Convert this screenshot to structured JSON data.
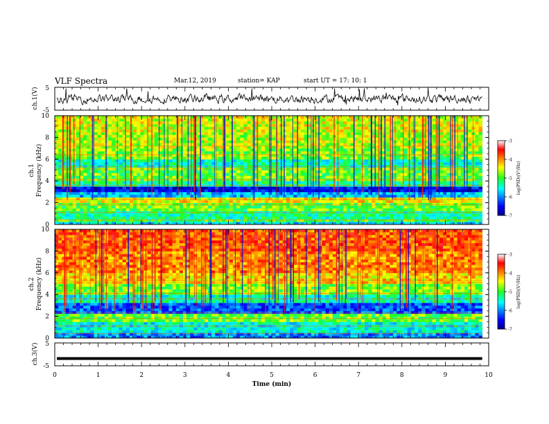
{
  "header": {
    "title": "VLF Spectra",
    "date": "Mar.12, 2019",
    "station": "station= KAP",
    "start": "start  UT =   17: 10: 1"
  },
  "chart_data": [
    {
      "type": "line",
      "panel": "ch1-waveform",
      "ylabel": "ch.1(V)",
      "ylim": [
        -5,
        5
      ],
      "yticks": [
        "5",
        "-5"
      ],
      "xlim": [
        0,
        10
      ],
      "line_color": "#000000"
    },
    {
      "type": "heatmap",
      "panel": "ch1-spectrogram",
      "ylabel_line1": "ch.1",
      "ylabel_line2": "Frequency (kHz)",
      "xlim": [
        0,
        10
      ],
      "ylim": [
        0,
        10
      ],
      "yticks": [
        "0",
        "2",
        "4",
        "6",
        "8",
        "10"
      ],
      "data_end_min": 9.85,
      "colorbar": {
        "label": "log(PSD)(V²/Hz)",
        "range": [
          -7,
          -3
        ],
        "ticks": [
          "-3",
          "-4",
          "-5",
          "-6",
          "-7"
        ]
      },
      "bands": [
        {
          "from": 0.0,
          "to": 0.3,
          "level": -5.7
        },
        {
          "from": 0.3,
          "to": 0.6,
          "level": -5.0
        },
        {
          "from": 0.6,
          "to": 1.2,
          "level": -5.3
        },
        {
          "from": 1.2,
          "to": 2.0,
          "level": -4.9
        },
        {
          "from": 2.0,
          "to": 2.6,
          "level": -4.4
        },
        {
          "from": 2.6,
          "to": 2.9,
          "level": -5.8
        },
        {
          "from": 2.9,
          "to": 3.5,
          "level": -6.6
        },
        {
          "from": 3.5,
          "to": 4.0,
          "level": -5.3
        },
        {
          "from": 4.0,
          "to": 5.2,
          "level": -4.9
        },
        {
          "from": 5.2,
          "to": 6.0,
          "level": -5.4
        },
        {
          "from": 6.0,
          "to": 7.0,
          "level": -4.8
        },
        {
          "from": 7.0,
          "to": 8.5,
          "level": -4.6
        },
        {
          "from": 8.5,
          "to": 10.0,
          "level": -4.5
        }
      ]
    },
    {
      "type": "heatmap",
      "panel": "ch2-spectrogram",
      "ylabel_line1": "ch.2",
      "ylabel_line2": "Frequency (kHz)",
      "xlim": [
        0,
        10
      ],
      "ylim": [
        0,
        10
      ],
      "yticks": [
        "0",
        "2",
        "4",
        "6",
        "8",
        "10"
      ],
      "data_end_min": 9.85,
      "colorbar": {
        "label": "log(PSD)(V²/Hz)",
        "range": [
          -7,
          -3
        ],
        "ticks": [
          "-3",
          "-4",
          "-5",
          "-6",
          "-7"
        ]
      },
      "bands": [
        {
          "from": 0.0,
          "to": 0.6,
          "level": -6.1
        },
        {
          "from": 0.6,
          "to": 1.6,
          "level": -5.6
        },
        {
          "from": 1.6,
          "to": 2.2,
          "level": -5.0
        },
        {
          "from": 2.2,
          "to": 3.3,
          "level": -6.3
        },
        {
          "from": 3.3,
          "to": 4.0,
          "level": -5.5
        },
        {
          "from": 4.0,
          "to": 5.0,
          "level": -4.9
        },
        {
          "from": 5.0,
          "to": 6.0,
          "level": -4.4
        },
        {
          "from": 6.0,
          "to": 8.0,
          "level": -4.1
        },
        {
          "from": 8.0,
          "to": 10.0,
          "level": -3.9
        }
      ]
    },
    {
      "type": "line",
      "panel": "ch3-waveform",
      "ylabel": "ch.3(V)",
      "ylim": [
        -5,
        5
      ],
      "yticks": [
        "5",
        "-5"
      ],
      "xlim": [
        0,
        10
      ],
      "xlabel": "Time (min)",
      "xticks": [
        "0",
        "1",
        "2",
        "3",
        "4",
        "5",
        "6",
        "7",
        "8",
        "9",
        "10"
      ],
      "constant_value": -1.8,
      "line_color": "#000000"
    }
  ]
}
